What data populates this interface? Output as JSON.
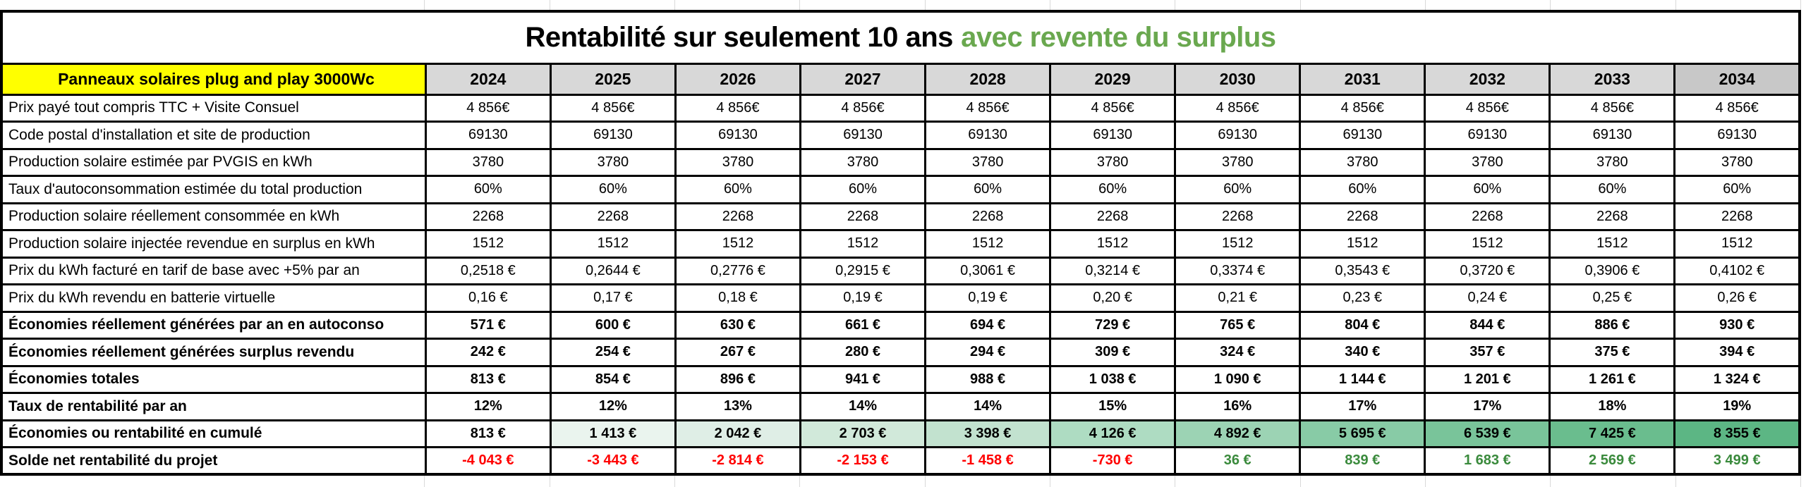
{
  "title": {
    "main": "Rentabilité sur seulement 10 ans",
    "highlight": "avec revente du surplus",
    "highlight_color": "#6aa84f"
  },
  "colors": {
    "corner_background": "#ffff00",
    "year_header_background": "#d8d8d8",
    "year_header_last_background": "#c8c8c8",
    "negative_text": "#ff0000",
    "positive_text": "#3a8a3c",
    "cumulative_gradient_start": "#ffffff",
    "cumulative_gradient_end": "#5cb684"
  },
  "table": {
    "corner_label": "Panneaux solaires plug and play 3000Wc",
    "years": [
      "2024",
      "2025",
      "2026",
      "2027",
      "2028",
      "2029",
      "2030",
      "2031",
      "2032",
      "2033",
      "2034"
    ],
    "rows": [
      {
        "label": "Prix payé tout compris TTC + Visite Consuel",
        "bold": false,
        "values": [
          "4 856€",
          "4 856€",
          "4 856€",
          "4 856€",
          "4 856€",
          "4 856€",
          "4 856€",
          "4 856€",
          "4 856€",
          "4 856€",
          "4 856€"
        ]
      },
      {
        "label": "Code postal d'installation et site de production",
        "bold": false,
        "values": [
          "69130",
          "69130",
          "69130",
          "69130",
          "69130",
          "69130",
          "69130",
          "69130",
          "69130",
          "69130",
          "69130"
        ]
      },
      {
        "label": "Production solaire estimée par PVGIS en kWh",
        "bold": false,
        "values": [
          "3780",
          "3780",
          "3780",
          "3780",
          "3780",
          "3780",
          "3780",
          "3780",
          "3780",
          "3780",
          "3780"
        ]
      },
      {
        "label": "Taux d'autoconsommation estimée du total production",
        "bold": false,
        "values": [
          "60%",
          "60%",
          "60%",
          "60%",
          "60%",
          "60%",
          "60%",
          "60%",
          "60%",
          "60%",
          "60%"
        ]
      },
      {
        "label": "Production solaire réellement consommée en kWh",
        "bold": false,
        "values": [
          "2268",
          "2268",
          "2268",
          "2268",
          "2268",
          "2268",
          "2268",
          "2268",
          "2268",
          "2268",
          "2268"
        ]
      },
      {
        "label": "Production solaire injectée revendue en surplus en kWh",
        "bold": false,
        "values": [
          "1512",
          "1512",
          "1512",
          "1512",
          "1512",
          "1512",
          "1512",
          "1512",
          "1512",
          "1512",
          "1512"
        ]
      },
      {
        "label": "Prix du kWh facturé en tarif de base avec +5% par an",
        "bold": false,
        "values": [
          "0,2518 €",
          "0,2644 €",
          "0,2776 €",
          "0,2915 €",
          "0,3061 €",
          "0,3214 €",
          "0,3374 €",
          "0,3543 €",
          "0,3720 €",
          "0,3906 €",
          "0,4102 €"
        ]
      },
      {
        "label": "Prix du kWh revendu en batterie virtuelle",
        "bold": false,
        "values": [
          "0,16 €",
          "0,17 €",
          "0,18 €",
          "0,19 €",
          "0,19 €",
          "0,20 €",
          "0,21 €",
          "0,23 €",
          "0,24 €",
          "0,25 €",
          "0,26 €"
        ]
      },
      {
        "label": "Économies réellement générées par an en autoconso",
        "bold": true,
        "values": [
          "571 €",
          "600 €",
          "630 €",
          "661 €",
          "694 €",
          "729 €",
          "765 €",
          "804 €",
          "844 €",
          "886 €",
          "930 €"
        ]
      },
      {
        "label": "Économies réellement générées surplus revendu",
        "bold": true,
        "values": [
          "242 €",
          "254 €",
          "267 €",
          "280 €",
          "294 €",
          "309 €",
          "324 €",
          "340 €",
          "357 €",
          "375 €",
          "394 €"
        ]
      },
      {
        "label": "Économies totales",
        "bold": true,
        "values": [
          "813 €",
          "854 €",
          "896 €",
          "941 €",
          "988 €",
          "1 038 €",
          "1 090 €",
          "1 144 €",
          "1 201 €",
          "1 261 €",
          "1 324 €"
        ]
      },
      {
        "label": "Taux de rentabilité par an",
        "bold": true,
        "values": [
          "12%",
          "12%",
          "13%",
          "14%",
          "14%",
          "15%",
          "16%",
          "17%",
          "17%",
          "18%",
          "19%"
        ]
      },
      {
        "label": "Économies ou rentabilité en cumulé",
        "bold": true,
        "values": [
          "813 €",
          "1 413 €",
          "2 042 €",
          "2 703 €",
          "3 398 €",
          "4 126 €",
          "4 892 €",
          "5 695 €",
          "6 539 €",
          "7 425 €",
          "8 355 €"
        ],
        "cell_backgrounds": [
          "#ffffff",
          "#eaf4ee",
          "#dfeee6",
          "#d1e9da",
          "#c2e2cf",
          "#aedcc2",
          "#9cd3b4",
          "#88cba6",
          "#79c49a",
          "#6abd8e",
          "#5cb684"
        ]
      },
      {
        "label": "Solde net rentabilité du projet",
        "bold": true,
        "values": [
          "-4 043 €",
          "-3 443 €",
          "-2 814 €",
          "-2 153 €",
          "-1 458 €",
          "-730 €",
          "36 €",
          "839 €",
          "1 683 €",
          "2 569 €",
          "3 499 €"
        ],
        "value_colors": [
          "#ff0000",
          "#ff0000",
          "#ff0000",
          "#ff0000",
          "#ff0000",
          "#ff0000",
          "#3a8a3c",
          "#3a8a3c",
          "#3a8a3c",
          "#3a8a3c",
          "#3a8a3c"
        ]
      }
    ]
  }
}
